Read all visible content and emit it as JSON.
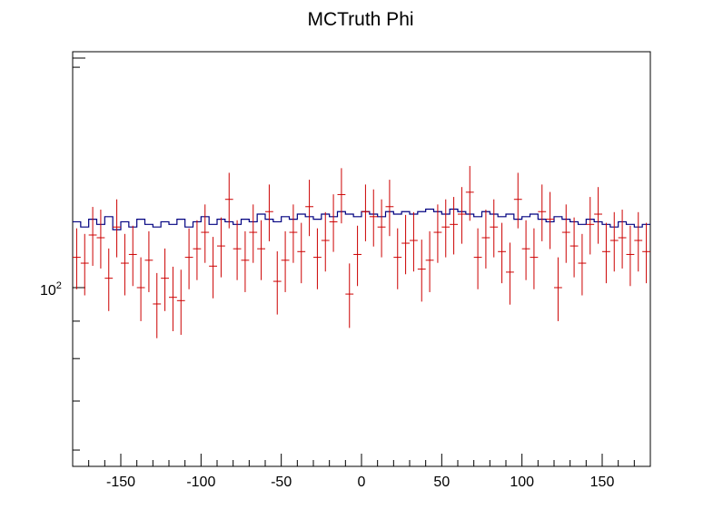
{
  "chart_data": {
    "type": "histogram",
    "title": "MCTruth Phi",
    "xlabel": "",
    "ylabel": "",
    "xlim": [
      -180,
      180
    ],
    "ylim": [
      57,
      210
    ],
    "y_scale": "log",
    "x_ticks": [
      -150,
      -100,
      -50,
      0,
      50,
      100,
      150
    ],
    "x_tick_labels": [
      "-150",
      "-100",
      "-50",
      "0",
      "50",
      "100",
      "150"
    ],
    "y_tick_label_base": "10",
    "y_tick_label_exp": "2",
    "y_tick_label_value": 100,
    "bin_width": 5,
    "series": [
      {
        "style": "step",
        "color": "#000080",
        "x": [
          -177.5,
          -172.5,
          -167.5,
          -162.5,
          -157.5,
          -152.5,
          -147.5,
          -142.5,
          -137.5,
          -132.5,
          -127.5,
          -122.5,
          -117.5,
          -112.5,
          -107.5,
          -102.5,
          -97.5,
          -92.5,
          -87.5,
          -82.5,
          -77.5,
          -72.5,
          -67.5,
          -62.5,
          -57.5,
          -52.5,
          -47.5,
          -42.5,
          -37.5,
          -32.5,
          -27.5,
          -22.5,
          -17.5,
          -12.5,
          -7.5,
          -2.5,
          2.5,
          7.5,
          12.5,
          17.5,
          22.5,
          27.5,
          32.5,
          37.5,
          42.5,
          47.5,
          52.5,
          57.5,
          62.5,
          67.5,
          72.5,
          77.5,
          82.5,
          87.5,
          92.5,
          97.5,
          102.5,
          107.5,
          112.5,
          117.5,
          122.5,
          127.5,
          132.5,
          137.5,
          142.5,
          147.5,
          152.5,
          157.5,
          162.5,
          167.5,
          172.5,
          177.5
        ],
        "values": [
          123,
          121,
          124,
          122,
          125,
          120,
          123,
          121,
          124,
          122,
          121,
          123,
          122,
          124,
          121,
          123,
          125,
          122,
          124,
          123,
          122,
          124,
          123,
          126,
          124,
          123,
          125,
          124,
          126,
          125,
          124,
          126,
          125,
          127,
          126,
          125,
          127,
          126,
          125,
          127,
          126,
          127,
          126,
          127,
          128,
          127,
          126,
          128,
          127,
          126,
          125,
          127,
          126,
          125,
          126,
          124,
          125,
          126,
          124,
          123,
          125,
          124,
          123,
          122,
          124,
          123,
          122,
          121,
          123,
          122,
          121,
          122
        ]
      },
      {
        "style": "error-bars",
        "color": "#cc0000",
        "x": [
          -177.5,
          -172.5,
          -167.5,
          -162.5,
          -157.5,
          -152.5,
          -147.5,
          -142.5,
          -137.5,
          -132.5,
          -127.5,
          -122.5,
          -117.5,
          -112.5,
          -107.5,
          -102.5,
          -97.5,
          -92.5,
          -87.5,
          -82.5,
          -77.5,
          -72.5,
          -67.5,
          -62.5,
          -57.5,
          -52.5,
          -47.5,
          -42.5,
          -37.5,
          -32.5,
          -27.5,
          -22.5,
          -17.5,
          -12.5,
          -7.5,
          -2.5,
          2.5,
          7.5,
          12.5,
          17.5,
          22.5,
          27.5,
          32.5,
          37.5,
          42.5,
          47.5,
          52.5,
          57.5,
          62.5,
          67.5,
          72.5,
          77.5,
          82.5,
          87.5,
          92.5,
          97.5,
          102.5,
          107.5,
          112.5,
          117.5,
          122.5,
          127.5,
          132.5,
          137.5,
          142.5,
          147.5,
          152.5,
          157.5,
          162.5,
          167.5,
          172.5,
          177.5
        ],
        "values": [
          110,
          108,
          118,
          117,
          103,
          121,
          108,
          111,
          100,
          109,
          95,
          103,
          97,
          96,
          110,
          113,
          119,
          107,
          114,
          132,
          113,
          109,
          119,
          113,
          127,
          102,
          109,
          119,
          112,
          129,
          110,
          116,
          123,
          134,
          98,
          111,
          127,
          125,
          121,
          129,
          110,
          115,
          116,
          106,
          109,
          119,
          121,
          122,
          126,
          135,
          110,
          117,
          121,
          112,
          105,
          132,
          113,
          110,
          127,
          124,
          100,
          119,
          114,
          108,
          122,
          126,
          112,
          116,
          117,
          111,
          116,
          112
        ],
        "errors": [
          10.5,
          10.4,
          10.9,
          10.8,
          10.1,
          11,
          10.4,
          10.5,
          10,
          10.4,
          9.7,
          10.1,
          9.8,
          9.8,
          10.5,
          10.6,
          10.9,
          10.3,
          10.7,
          11.5,
          10.6,
          10.4,
          10.9,
          10.6,
          11.3,
          10.1,
          10.4,
          10.9,
          10.6,
          11.4,
          10.5,
          10.8,
          11.1,
          11.6,
          9.9,
          10.5,
          11.3,
          11.2,
          11,
          11.4,
          10.5,
          10.7,
          10.8,
          10.3,
          10.4,
          10.9,
          11,
          11,
          11.2,
          11.6,
          10.5,
          10.8,
          11,
          10.6,
          10.2,
          11.5,
          10.6,
          10.5,
          11.3,
          11.1,
          10,
          10.9,
          10.7,
          10.4,
          11,
          11.2,
          10.6,
          10.8,
          10.8,
          10.5,
          10.8,
          10.6
        ]
      }
    ]
  }
}
